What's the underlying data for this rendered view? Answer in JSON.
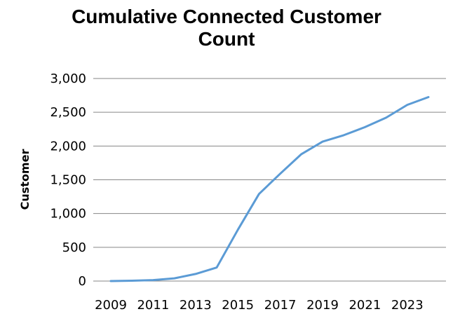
{
  "chart_data": {
    "type": "line",
    "title_lines": [
      "Cumulative Connected Customer",
      "Count"
    ],
    "xlabel": "",
    "ylabel": "Customer",
    "xlim": [
      2009,
      2024
    ],
    "ylim": [
      0,
      3000
    ],
    "x_ticks": [
      "2009",
      "2011",
      "2013",
      "2015",
      "2017",
      "2019",
      "2021",
      "2023"
    ],
    "y_ticks": [
      "0",
      "500",
      "1,000",
      "1,500",
      "2,000",
      "2,500",
      "3,000"
    ],
    "grid": true,
    "legend": "none",
    "series": [
      {
        "color": "#5B9BD5",
        "x": [
          2009,
          2010,
          2011,
          2012,
          2013,
          2014,
          2015,
          2016,
          2017,
          2018,
          2019,
          2020,
          2021,
          2022,
          2023,
          2024
        ],
        "values": [
          0,
          5,
          15,
          40,
          105,
          200,
          760,
          1290,
          1590,
          1880,
          2065,
          2160,
          2280,
          2420,
          2610,
          2725
        ]
      }
    ]
  }
}
